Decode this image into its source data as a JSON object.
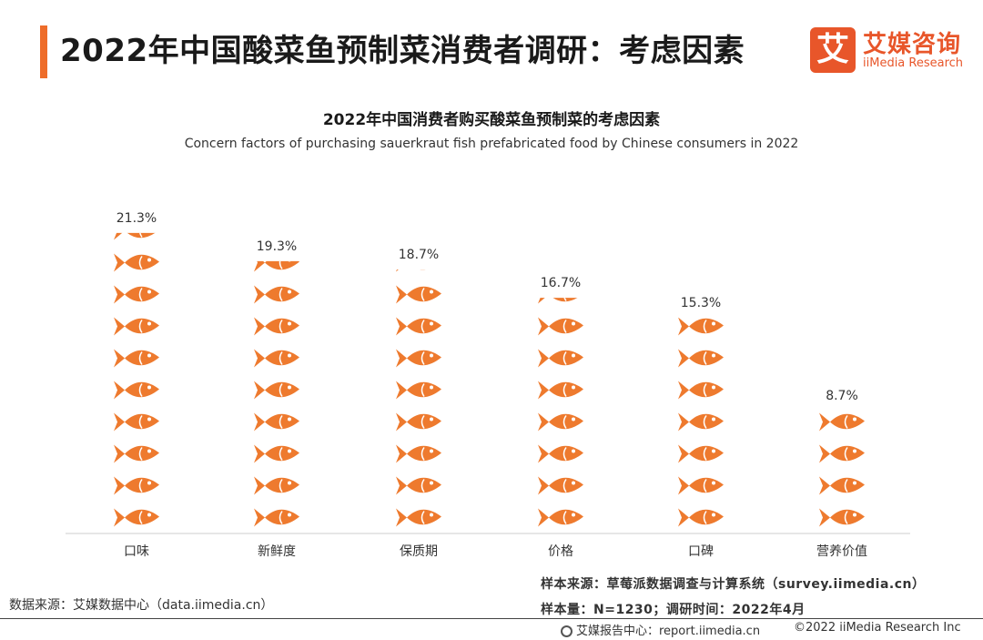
{
  "header": {
    "title": "2022年中国酸菜鱼预制菜消费者调研：考虑因素",
    "accent_color": "#ee6d2a"
  },
  "logo": {
    "mark": "艾",
    "cn": "艾媒咨询",
    "en": "iiMedia Research",
    "color": "#e8562a"
  },
  "chart_data": {
    "type": "bar",
    "title": "2022年中国消费者购买酸菜鱼预制菜的考虑因素",
    "subtitle": "Concern factors of purchasing sauerkraut fish prefabricated food by Chinese consumers in 2022",
    "categories": [
      "口味",
      "新鲜度",
      "保质期",
      "价格",
      "口碑",
      "营养价值"
    ],
    "values": [
      21.3,
      19.3,
      18.7,
      16.7,
      15.3,
      8.7
    ],
    "value_labels": [
      "21.3%",
      "19.3%",
      "18.7%",
      "16.7%",
      "15.3%",
      "8.7%"
    ],
    "unit": "%",
    "mark": "fish-icon",
    "bar_color": "#ee7a2e",
    "grid": false,
    "legend": "none"
  },
  "sources": {
    "data_source": "数据来源：艾媒数据中心（data.iimedia.cn）",
    "sample_source": "样本来源：草莓派数据调查与计算系统（survey.iimedia.cn）",
    "sample_size": "样本量：N=1230；调研时间：2022年4月"
  },
  "footer": {
    "report": "艾媒报告中心：report.iimedia.cn",
    "copyright": "©2022 iiMedia Research Inc"
  }
}
